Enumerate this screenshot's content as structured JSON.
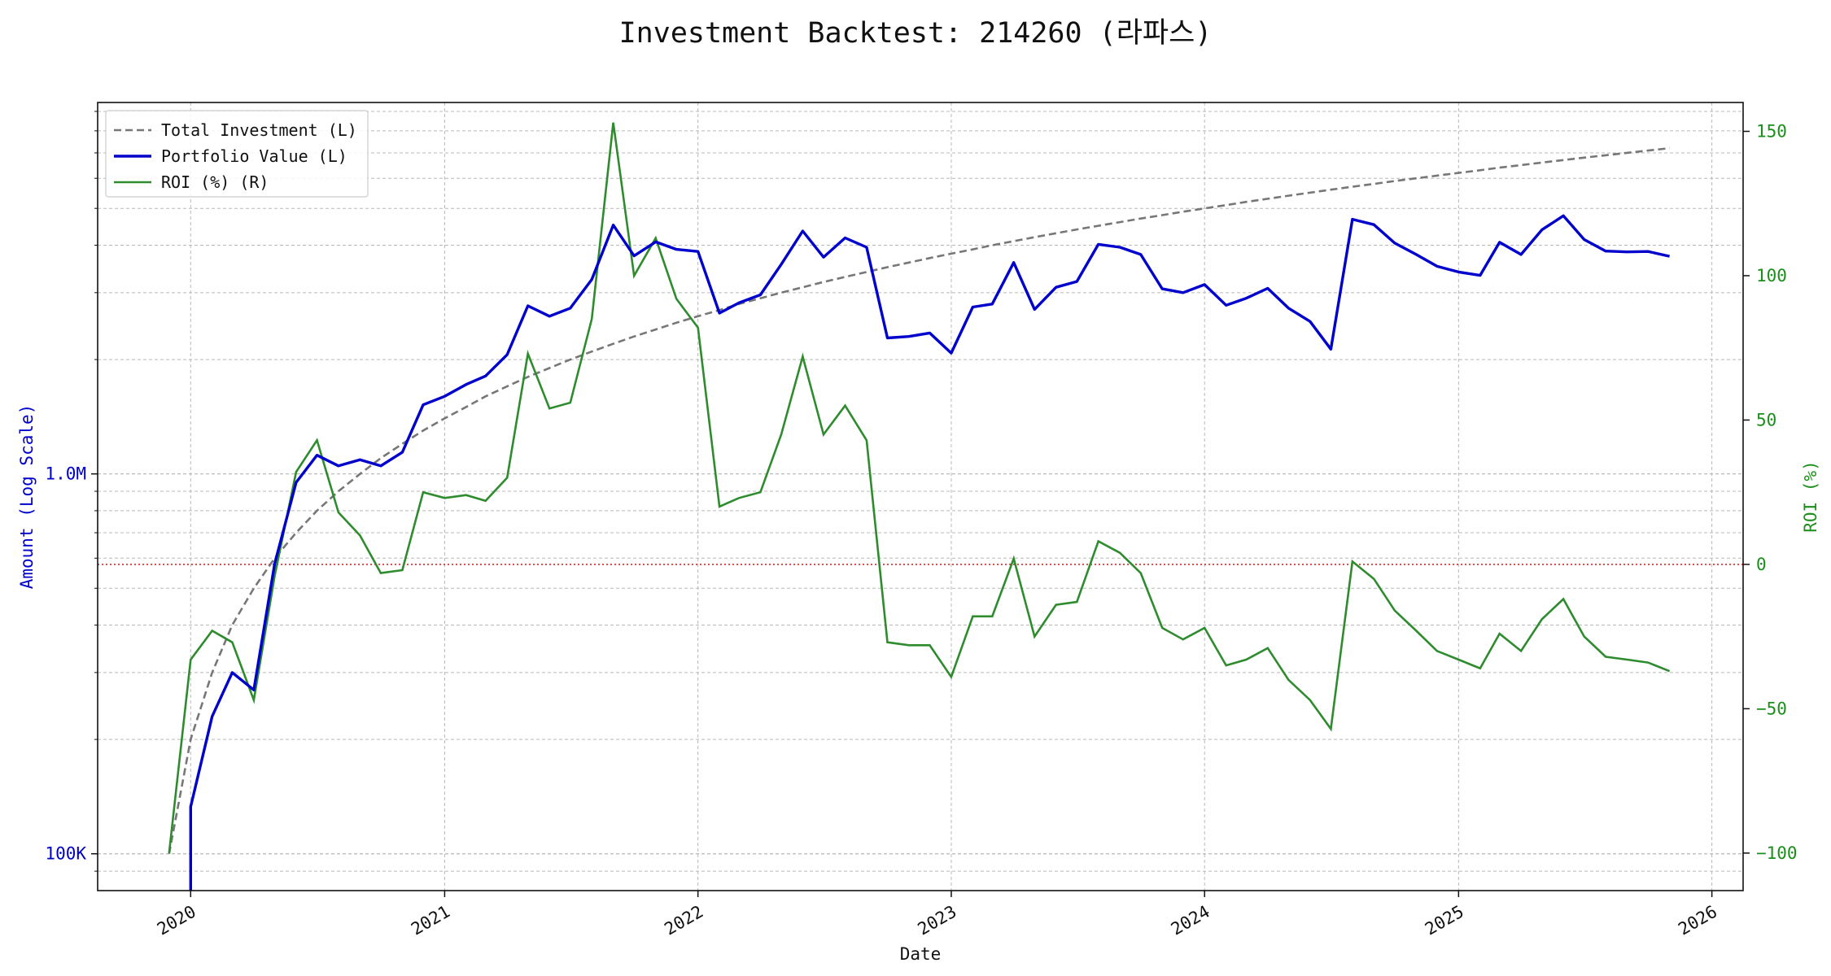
{
  "chart_data": {
    "type": "line",
    "title": "Investment Backtest: 214260 (라파스)",
    "xlabel": "Date",
    "ylabel_left": "Amount (Log Scale)",
    "ylabel_right": "ROI (%)",
    "y_left_scale": "log",
    "y_left_ticks": [
      {
        "value": 100000,
        "label": "100K"
      },
      {
        "value": 1000000,
        "label": "1.0M"
      }
    ],
    "y_left_range": [
      80000,
      9500000
    ],
    "y_right_ticks": [
      -100,
      -50,
      0,
      50,
      100,
      150
    ],
    "y_right_range": [
      -113,
      160
    ],
    "x_range": [
      "2019-08-20",
      "2026-02-15"
    ],
    "x_ticks": [
      "2020",
      "2021",
      "2022",
      "2023",
      "2024",
      "2025",
      "2026"
    ],
    "zero_line": {
      "axis": "right",
      "value": 0,
      "color": "#d62728",
      "style": "dotted"
    },
    "grid": true,
    "legend": {
      "position": "top-left",
      "entries": [
        "Total Investment (L)",
        "Portfolio Value (L)",
        "ROI (%) (R)"
      ]
    },
    "colors": {
      "investment": "#777777",
      "portfolio": "#0000cc",
      "roi": "#2e8b2e",
      "left_axis": "#0000cc",
      "right_axis": "#1a8f1a"
    },
    "x": [
      "2019-12-01",
      "2020-01-01",
      "2020-02-01",
      "2020-03-01",
      "2020-04-01",
      "2020-05-01",
      "2020-06-01",
      "2020-07-01",
      "2020-08-01",
      "2020-09-01",
      "2020-10-01",
      "2020-11-01",
      "2020-12-01",
      "2021-01-01",
      "2021-02-01",
      "2021-03-01",
      "2021-04-01",
      "2021-05-01",
      "2021-06-01",
      "2021-07-01",
      "2021-08-01",
      "2021-09-01",
      "2021-10-01",
      "2021-11-01",
      "2021-12-01",
      "2022-01-01",
      "2022-02-01",
      "2022-03-01",
      "2022-04-01",
      "2022-05-01",
      "2022-06-01",
      "2022-07-01",
      "2022-08-01",
      "2022-09-01",
      "2022-10-01",
      "2022-11-01",
      "2022-12-01",
      "2023-01-01",
      "2023-02-01",
      "2023-03-01",
      "2023-04-01",
      "2023-05-01",
      "2023-06-01",
      "2023-07-01",
      "2023-08-01",
      "2023-09-01",
      "2023-10-01",
      "2023-11-01",
      "2023-12-01",
      "2024-01-01",
      "2024-02-01",
      "2024-03-01",
      "2024-04-01",
      "2024-05-01",
      "2024-06-01",
      "2024-07-01",
      "2024-08-01",
      "2024-09-01",
      "2024-10-01",
      "2024-11-01",
      "2024-12-01",
      "2025-01-01",
      "2025-02-01",
      "2025-03-01",
      "2025-04-01",
      "2025-05-01",
      "2025-06-01",
      "2025-07-01",
      "2025-08-01",
      "2025-09-01",
      "2025-10-01",
      "2025-11-01"
    ],
    "series": [
      {
        "name": "Total Investment (L)",
        "axis": "left",
        "values": [
          100000,
          200000,
          300000,
          400000,
          500000,
          600000,
          700000,
          800000,
          900000,
          1000000,
          1100000,
          1200000,
          1300000,
          1400000,
          1500000,
          1600000,
          1700000,
          1800000,
          1900000,
          2000000,
          2100000,
          2200000,
          2300000,
          2400000,
          2500000,
          2600000,
          2700000,
          2800000,
          2900000,
          3000000,
          3100000,
          3200000,
          3300000,
          3400000,
          3500000,
          3600000,
          3700000,
          3800000,
          3900000,
          4000000,
          4100000,
          4200000,
          4300000,
          4400000,
          4500000,
          4600000,
          4700000,
          4800000,
          4900000,
          5000000,
          5100000,
          5200000,
          5300000,
          5400000,
          5500000,
          5600000,
          5700000,
          5800000,
          5900000,
          6000000,
          6100000,
          6200000,
          6300000,
          6400000,
          6500000,
          6600000,
          6700000,
          6800000,
          6900000,
          7000000,
          7100000,
          7200000
        ]
      },
      {
        "name": "Portfolio Value (L)",
        "axis": "left",
        "values": [
          null,
          133000,
          230000,
          300000,
          270000,
          580000,
          950000,
          1120000,
          1050000,
          1090000,
          1050000,
          1140000,
          1520000,
          1600000,
          1720000,
          1810000,
          2060000,
          2770000,
          2600000,
          2730000,
          3250000,
          4520000,
          3750000,
          4080000,
          3900000,
          3850000,
          2650000,
          2820000,
          2960000,
          3560000,
          4360000,
          3720000,
          4180000,
          3950000,
          2280000,
          2300000,
          2350000,
          2080000,
          2750000,
          2800000,
          3600000,
          2710000,
          3100000,
          3210000,
          4020000,
          3950000,
          3780000,
          3070000,
          3000000,
          3150000,
          2780000,
          2900000,
          3080000,
          2730000,
          2520000,
          2130000,
          4680000,
          4530000,
          4050000,
          3780000,
          3520000,
          3400000,
          3330000,
          4070000,
          3780000,
          4390000,
          4780000,
          4140000,
          3860000,
          3840000,
          3850000,
          3740000
        ]
      },
      {
        "name": "ROI (%) (R)",
        "axis": "right",
        "values": [
          -100,
          -33,
          -23,
          -27,
          -47,
          -4,
          32,
          43,
          18,
          10,
          -3,
          -2,
          25,
          23,
          24,
          22,
          30,
          73,
          54,
          56,
          85,
          153,
          100,
          113,
          92,
          82,
          20,
          23,
          25,
          45,
          72,
          45,
          55,
          43,
          -27,
          -28,
          -28,
          -39,
          -18,
          -18,
          2,
          -25,
          -14,
          -13,
          8,
          4,
          -3,
          -22,
          -26,
          -22,
          -35,
          -33,
          -29,
          -40,
          -47,
          -57,
          1,
          -5,
          -16,
          -23,
          -30,
          -33,
          -36,
          -24,
          -30,
          -19,
          -12,
          -25,
          -32,
          -33,
          -34,
          -37
        ]
      }
    ]
  }
}
